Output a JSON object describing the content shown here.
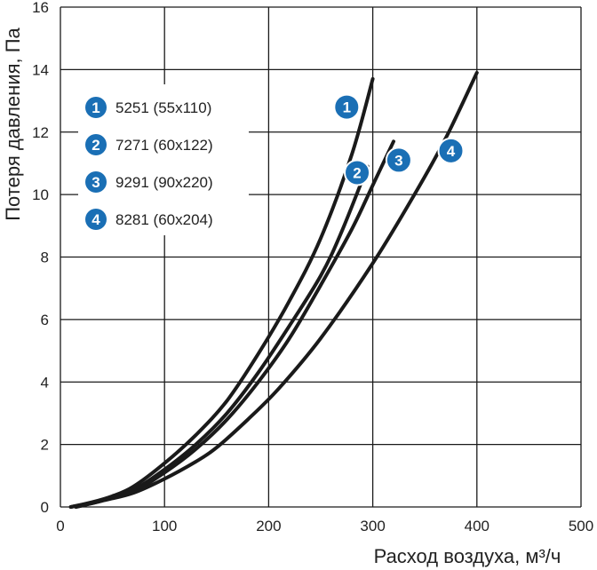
{
  "chart_data": {
    "type": "line",
    "title": "",
    "xlabel": "Расход воздуха, м³/ч",
    "ylabel": "Потеря давления, Па",
    "xlim": [
      0,
      500
    ],
    "ylim": [
      0,
      16
    ],
    "x_ticks": [
      "0",
      "100",
      "200",
      "300",
      "400",
      "500"
    ],
    "y_ticks": [
      "0",
      "2",
      "4",
      "6",
      "8",
      "10",
      "12",
      "14",
      "16"
    ],
    "grid": true,
    "legend_position": "top-left",
    "badge_color": "#1a6fb5",
    "line_color": "#1a1a1a",
    "series": [
      {
        "name": "5251 (55x110)",
        "badge": "1",
        "points": [
          [
            10,
            0.0
          ],
          [
            30,
            0.15
          ],
          [
            50,
            0.35
          ],
          [
            70,
            0.65
          ],
          [
            100,
            1.4
          ],
          [
            130,
            2.3
          ],
          [
            160,
            3.4
          ],
          [
            190,
            4.9
          ],
          [
            220,
            6.6
          ],
          [
            250,
            8.6
          ],
          [
            280,
            11.3
          ],
          [
            300,
            13.7
          ]
        ]
      },
      {
        "name": "7271 (60x122)",
        "badge": "2",
        "points": [
          [
            15,
            0.0
          ],
          [
            40,
            0.2
          ],
          [
            70,
            0.55
          ],
          [
            100,
            1.2
          ],
          [
            130,
            2.0
          ],
          [
            160,
            3.0
          ],
          [
            190,
            4.3
          ],
          [
            220,
            5.8
          ],
          [
            250,
            7.4
          ],
          [
            270,
            8.8
          ],
          [
            295,
            10.9
          ]
        ]
      },
      {
        "name": "9291 (90x220)",
        "badge": "3",
        "points": [
          [
            15,
            0.0
          ],
          [
            40,
            0.2
          ],
          [
            70,
            0.5
          ],
          [
            100,
            1.1
          ],
          [
            130,
            1.85
          ],
          [
            160,
            2.8
          ],
          [
            190,
            4.0
          ],
          [
            220,
            5.4
          ],
          [
            250,
            7.1
          ],
          [
            280,
            8.9
          ],
          [
            300,
            10.3
          ],
          [
            320,
            11.7
          ]
        ]
      },
      {
        "name": "8281 (60x204)",
        "badge": "4",
        "points": [
          [
            10,
            0.0
          ],
          [
            40,
            0.2
          ],
          [
            70,
            0.45
          ],
          [
            100,
            0.9
          ],
          [
            130,
            1.45
          ],
          [
            150,
            1.9
          ],
          [
            180,
            2.8
          ],
          [
            210,
            3.8
          ],
          [
            250,
            5.4
          ],
          [
            300,
            7.8
          ],
          [
            340,
            10.0
          ],
          [
            370,
            11.8
          ],
          [
            400,
            13.9
          ]
        ]
      }
    ]
  }
}
